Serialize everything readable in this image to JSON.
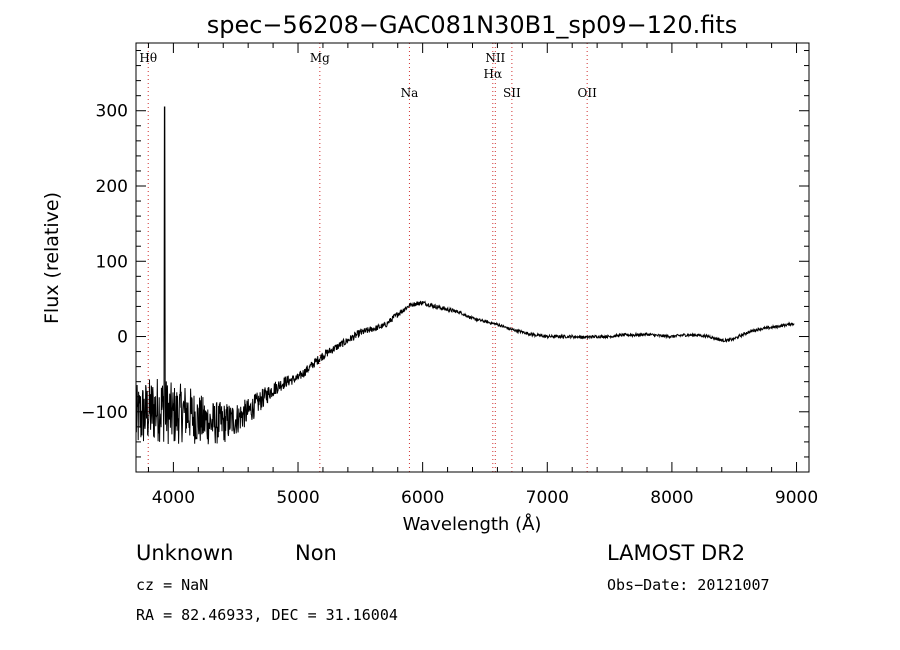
{
  "chart_data": {
    "type": "line",
    "title": "spec−56208−GAC081N30B1_sp09−120.fits",
    "xlabel": "Wavelength (Å)",
    "ylabel": "Flux (relative)",
    "xlim": [
      3700,
      9100
    ],
    "ylim": [
      -180,
      390
    ],
    "x_ticks": [
      {
        "value": 4000,
        "label": "4000"
      },
      {
        "value": 5000,
        "label": "5000"
      },
      {
        "value": 6000,
        "label": "6000"
      },
      {
        "value": 7000,
        "label": "7000"
      },
      {
        "value": 8000,
        "label": "8000"
      },
      {
        "value": 9000,
        "label": "9000"
      }
    ],
    "y_ticks": [
      {
        "value": -100,
        "label": "−100"
      },
      {
        "value": 0,
        "label": "0"
      },
      {
        "value": 100,
        "label": "100"
      },
      {
        "value": 200,
        "label": "200"
      },
      {
        "value": 300,
        "label": "300"
      }
    ],
    "lines": [
      {
        "name": "Hθ",
        "wavelength": 3798,
        "row": 0
      },
      {
        "name": "Mg",
        "wavelength": 5175,
        "row": 0
      },
      {
        "name": "Na",
        "wavelength": 5894,
        "row": 2
      },
      {
        "name": "NII",
        "wavelength": 6583,
        "row": 0
      },
      {
        "name": "Hα",
        "wavelength": 6563,
        "row": 1
      },
      {
        "name": "SII",
        "wavelength": 6716,
        "row": 2
      },
      {
        "name": "OII",
        "wavelength": 7320,
        "row": 2
      }
    ],
    "spike": {
      "wavelength": 3930,
      "flux": 305
    },
    "series": [
      {
        "x": [
          3700,
          3800,
          3900,
          4000,
          4100,
          4200,
          4300,
          4400,
          4500,
          4600,
          4700,
          4800,
          4900,
          5000,
          5100,
          5200,
          5300,
          5400,
          5500,
          5600,
          5700,
          5800,
          5900,
          6000,
          6100,
          6200,
          6300,
          6400,
          6500,
          6600,
          6700,
          6800,
          6900,
          7000,
          7100,
          7200,
          7300,
          7400,
          7500,
          7600,
          7700,
          7800,
          7900,
          8000,
          8100,
          8200,
          8300,
          8400,
          8450,
          8500,
          8600,
          8700,
          8800,
          8900,
          9000
        ],
        "y": [
          -110,
          -100,
          -95,
          -105,
          -100,
          -110,
          -115,
          -115,
          -110,
          -100,
          -85,
          -70,
          -60,
          -55,
          -40,
          -25,
          -15,
          -5,
          5,
          10,
          15,
          30,
          42,
          45,
          40,
          36,
          32,
          24,
          20,
          16,
          10,
          6,
          2,
          0,
          0,
          0,
          -1,
          0,
          0,
          2,
          2,
          3,
          1,
          0,
          2,
          2,
          0,
          -5,
          -5,
          -3,
          5,
          10,
          12,
          15,
          18
        ],
        "noise": [
          45,
          45,
          45,
          42,
          38,
          35,
          30,
          28,
          22,
          18,
          14,
          10,
          8,
          6,
          6,
          6,
          5,
          5,
          5,
          4,
          4,
          4,
          3,
          3,
          3,
          3,
          2,
          2,
          2,
          2,
          2,
          2,
          2,
          2,
          2,
          2,
          2,
          2,
          2,
          2,
          2,
          2,
          2,
          2,
          2,
          2,
          2,
          2,
          2,
          2,
          2,
          2,
          2,
          2,
          2
        ]
      }
    ]
  },
  "footer": {
    "object_class": "Unknown",
    "object_subclass": "Non",
    "cz": "cz = NaN",
    "coords": "RA =  82.46933, DEC =  31.16004",
    "survey": "LAMOST DR2",
    "obs_date": "Obs−Date: 20121007"
  }
}
